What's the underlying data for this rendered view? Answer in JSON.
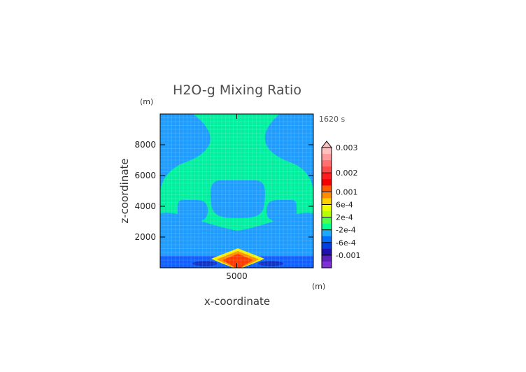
{
  "chart_data": {
    "type": "heatmap",
    "title": "H2O-g Mixing Ratio",
    "xlabel": "x-coordinate",
    "ylabel": "z-coordinate",
    "x_unit": "(m)",
    "y_unit": "(m)",
    "time_label": "1620 s",
    "xlim": [
      0,
      10000
    ],
    "ylim": [
      0,
      10000
    ],
    "x_ticks": [
      {
        "value": 5000,
        "label": "5000"
      }
    ],
    "y_ticks": [
      {
        "value": 2000,
        "label": "2000"
      },
      {
        "value": 4000,
        "label": "4000"
      },
      {
        "value": 6000,
        "label": "6000"
      },
      {
        "value": 8000,
        "label": "8000"
      }
    ],
    "grid": false,
    "colorbar": {
      "orientation": "vertical",
      "placement": "right",
      "levels": [
        {
          "color": "#ffc0c0"
        },
        {
          "color": "#ff9a9a"
        },
        {
          "color": "#ff7070"
        },
        {
          "color": "#ff4a4a"
        },
        {
          "color": "#ff1e1e"
        },
        {
          "color": "#f20000"
        },
        {
          "color": "#ff5a00"
        },
        {
          "color": "#ff8c00"
        },
        {
          "color": "#ffd000"
        },
        {
          "color": "#f0ff00"
        },
        {
          "color": "#b6ff00"
        },
        {
          "color": "#4cff4c"
        },
        {
          "color": "#00ff90"
        },
        {
          "color": "#20a8ff"
        },
        {
          "color": "#0070ff"
        },
        {
          "color": "#0040e0"
        },
        {
          "color": "#2010b0"
        },
        {
          "color": "#5a20b8"
        },
        {
          "color": "#8030d8"
        }
      ],
      "tick_labels": [
        {
          "label": "0.003",
          "level": 0
        },
        {
          "label": "0.002",
          "level": 4
        },
        {
          "label": "0.001",
          "level": 7
        },
        {
          "label": "6e-4",
          "level": 9
        },
        {
          "label": "2e-4",
          "level": 11
        },
        {
          "label": "-2e-4",
          "level": 13
        },
        {
          "label": "-6e-4",
          "level": 15
        },
        {
          "label": "-0.001",
          "level": 17
        }
      ]
    },
    "field_colors": {
      "background": "#1e9cff",
      "plume": "#00f0a0",
      "low_layer": "#1060ff",
      "dark_patch": "#1030c0",
      "core_yellow": "#f5f000",
      "core_orange": "#ff9000",
      "core_red": "#ff3a00"
    }
  }
}
